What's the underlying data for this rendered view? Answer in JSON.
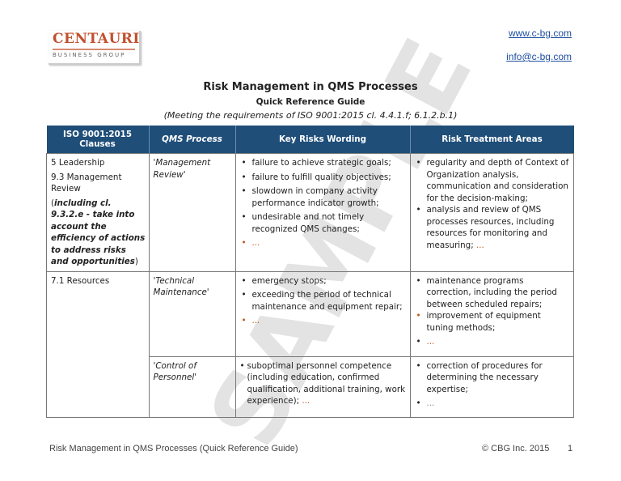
{
  "logo": {
    "main": "CENTAURI",
    "sub": "BUSINESS GROUP"
  },
  "links": {
    "website": "www.c-bg.com",
    "email": "info@c-bg.com"
  },
  "header": {
    "title": "Risk Management in QMS Processes",
    "subtitle": "Quick Reference Guide",
    "note": "(Meeting the requirements of ISO 9001:2015 cl. 4.4.1.f; 6.1.2.b.1)"
  },
  "table": {
    "columns": [
      "ISO 9001:2015 Clauses",
      "QMS Process",
      "Key Risks Wording",
      "Risk Treatment Areas"
    ],
    "rows": [
      {
        "clause_lines": [
          "5 Leadership",
          "9.3 Management Review"
        ],
        "clause_note": "including cl. 9.3.2.e - take into account the efficiency of actions to address risks and opportunities",
        "process": "'Management Review'",
        "risks": [
          "failure to achieve strategic goals;",
          "failure to fulfill quality objectives;",
          "slowdown in company activity performance indicator growth;",
          "undesirable and not timely recognized QMS changes;",
          "..."
        ],
        "treatments": [
          "regularity and depth of Context of Organization analysis, communication and consideration for the decision-making;",
          "analysis and review of QMS processes resources, including resources for monitoring and measuring;"
        ],
        "treatments_tail": "..."
      },
      {
        "clause_lines": [
          "7.1 Resources"
        ],
        "process": "'Technical Maintenance'",
        "risks": [
          "emergency stops;",
          "exceeding the period of technical maintenance and equipment repair;",
          "..."
        ],
        "treatments": [
          "maintenance programs correction, including the period between scheduled repairs;",
          "improvement of  equipment tuning methods;",
          "..."
        ]
      },
      {
        "process": "'Control of Personnel'",
        "risks": [
          "suboptimal personnel competence (including education, confirmed qualification, additional training, work experience);"
        ],
        "risks_tail": "...",
        "treatments": [
          "correction of procedures for determining the necessary expertise;",
          "..."
        ]
      }
    ]
  },
  "watermark": "SAMPLE",
  "footer": {
    "left": "Risk Management in QMS Processes (Quick Reference Guide)",
    "copyright": "© CBG Inc. 2015",
    "page": "1"
  },
  "colors": {
    "header_bg": "#1f4e79",
    "accent": "#c05a1a",
    "link": "#1f4fa0",
    "logo": "#c2502e"
  }
}
